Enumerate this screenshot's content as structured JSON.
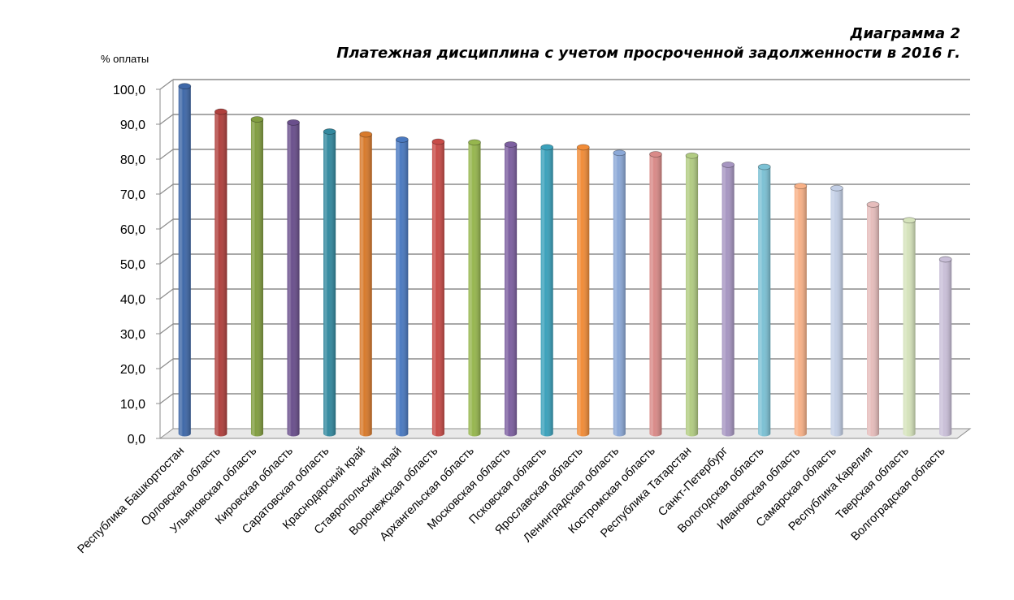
{
  "chart_data": {
    "type": "bar",
    "title": "Диаграмма 2",
    "subtitle": "Платежная дисциплина с учетом просроченной задолженности в 2016 г.",
    "ylabel": "% оплаты",
    "xlabel": "",
    "ylim": [
      0,
      100
    ],
    "grid": true,
    "y_ticks": [
      "0,0",
      "10,0",
      "20,0",
      "30,0",
      "40,0",
      "50,0",
      "60,0",
      "70,0",
      "80,0",
      "90,0",
      "100,0"
    ],
    "categories": [
      "Республика Башкортостан",
      "Орловская область",
      "Ульяновская область",
      "Кировская область",
      "Саратовская область",
      "Краснодарский край",
      "Ставропольский край",
      "Воронежская область",
      "Архангельская область",
      "Московская область",
      "Псковская область",
      "Ярославская область",
      "Ленинградская область",
      "Костромская область",
      "Республика Татарстан",
      "Санкт-Петербург",
      "Вологодская область",
      "Ивановская область",
      "Самарская область",
      "Республика Карелия",
      "Тверская область",
      "Волгоградская область"
    ],
    "values": [
      99.5,
      92.2,
      90.0,
      89.1,
      86.5,
      85.7,
      84.2,
      83.6,
      83.4,
      82.8,
      82.0,
      82.0,
      80.4,
      80.0,
      79.6,
      77.0,
      76.4,
      70.9,
      70.3,
      65.6,
      61.1,
      49.9
    ],
    "colors": [
      "#3f68a8",
      "#b0403d",
      "#819d40",
      "#6a4f8c",
      "#33899f",
      "#d87a2c",
      "#4a79c0",
      "#c84c48",
      "#96b64e",
      "#7d60a0",
      "#3ba1bb",
      "#f18c38",
      "#8ba8d7",
      "#d98a88",
      "#b2cc82",
      "#a695c1",
      "#7cc1d4",
      "#f8b187",
      "#c3cfe6",
      "#e6bdbc",
      "#d5e3bb",
      "#c9bfd8"
    ]
  }
}
